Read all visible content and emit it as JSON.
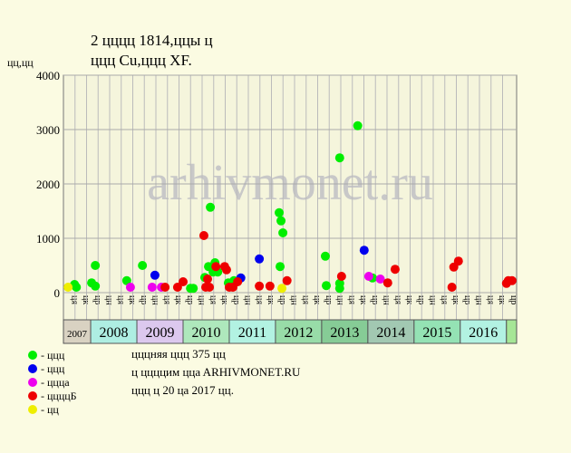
{
  "chart_data": {
    "type": "scatter",
    "title": [
      "2 цццц 1814,ццы ц",
      "ццц Cu,ццц XF."
    ],
    "y_label": "цц,цц",
    "watermark": "arhivmonet.ru",
    "xlim": [
      2007.41,
      2017.22
    ],
    "ylim": [
      0,
      4000
    ],
    "yticks": [
      0,
      1000,
      2000,
      3000,
      4000
    ],
    "grid": true,
    "column_labels": [
      "ця",
      "цк",
      "цр",
      "цн",
      "ця",
      "цк",
      "цр",
      "цн",
      "ця",
      "цк",
      "цр",
      "цн",
      "ця",
      "цк",
      "цр",
      "цн",
      "ця",
      "цк",
      "цр",
      "цн",
      "ця",
      "цк",
      "цр",
      "цн",
      "ця",
      "цк",
      "цр",
      "цн",
      "ця",
      "цк",
      "цр",
      "цн",
      "ця",
      "цк",
      "цр",
      "цн",
      "ця",
      "цк",
      "цр"
    ],
    "year_bands": [
      {
        "label": "2007",
        "color": "#d9d2c2"
      },
      {
        "label": "2008",
        "color": "#aeeee2"
      },
      {
        "label": "2009",
        "color": "#dcc8ee"
      },
      {
        "label": "2010",
        "color": "#aee8bc"
      },
      {
        "label": "2011",
        "color": "#b2f2e2"
      },
      {
        "label": "2012",
        "color": "#98dca8"
      },
      {
        "label": "2013",
        "color": "#86cc96"
      },
      {
        "label": "2014",
        "color": "#a2c8b2"
      },
      {
        "label": "2015",
        "color": "#94e2b4"
      },
      {
        "label": "2016",
        "color": "#b2f2e2"
      }
    ],
    "series": [
      {
        "name": "- ццц",
        "color": "#00ee00",
        "x": [
          2007.65,
          2007.69,
          2008.02,
          2008.1,
          2008.1,
          2008.78,
          2009.12,
          2010.16,
          2010.22,
          2010.47,
          2010.55,
          2010.59,
          2010.65,
          2010.69,
          2010.75,
          2010.98,
          2011.1,
          2012.08,
          2012.12,
          2012.16,
          2012.1,
          2013.08,
          2013.1,
          2013.39,
          2013.39,
          2013.39,
          2013.78,
          2014.1
        ],
        "values": [
          150,
          100,
          180,
          120,
          500,
          220,
          500,
          80,
          80,
          280,
          480,
          1570,
          380,
          550,
          380,
          180,
          220,
          1470,
          1320,
          1100,
          480,
          670,
          130,
          2480,
          170,
          80,
          3070,
          270
        ]
      },
      {
        "name": "- ццц",
        "color": "#0000ee",
        "x": [
          2009.39,
          2011.25,
          2011.65,
          2013.92
        ],
        "values": [
          320,
          270,
          620,
          780
        ]
      },
      {
        "name": "- цццa",
        "color": "#ee00ee",
        "x": [
          2008.86,
          2009.33,
          2009.53,
          2014.02,
          2014.27
        ],
        "values": [
          100,
          100,
          100,
          300,
          250
        ]
      },
      {
        "name": "- ццццБ",
        "color": "#ee0000",
        "x": [
          2009.61,
          2009.88,
          2010.0,
          2010.45,
          2010.49,
          2010.57,
          2010.53,
          2010.71,
          2010.9,
          2010.94,
          2011.0,
          2011.08,
          2011.18,
          2011.65,
          2011.88,
          2012.25,
          2013.43,
          2014.43,
          2014.59,
          2015.82,
          2015.86,
          2015.96,
          2017.0,
          2017.04,
          2017.12
        ],
        "values": [
          100,
          100,
          200,
          1050,
          100,
          100,
          250,
          480,
          480,
          420,
          100,
          100,
          200,
          120,
          120,
          220,
          300,
          180,
          430,
          100,
          470,
          580,
          170,
          220,
          220
        ]
      },
      {
        "name": "- цц",
        "color": "#eeee00",
        "x": [
          2007.51,
          2012.14
        ],
        "values": [
          100,
          80
        ]
      }
    ],
    "notes": [
      "цццняя ццц 375 цц",
      "ц ццццим ццa ARHIVMONET.RU",
      "ццц ц 20 цa 2017 цц."
    ]
  }
}
